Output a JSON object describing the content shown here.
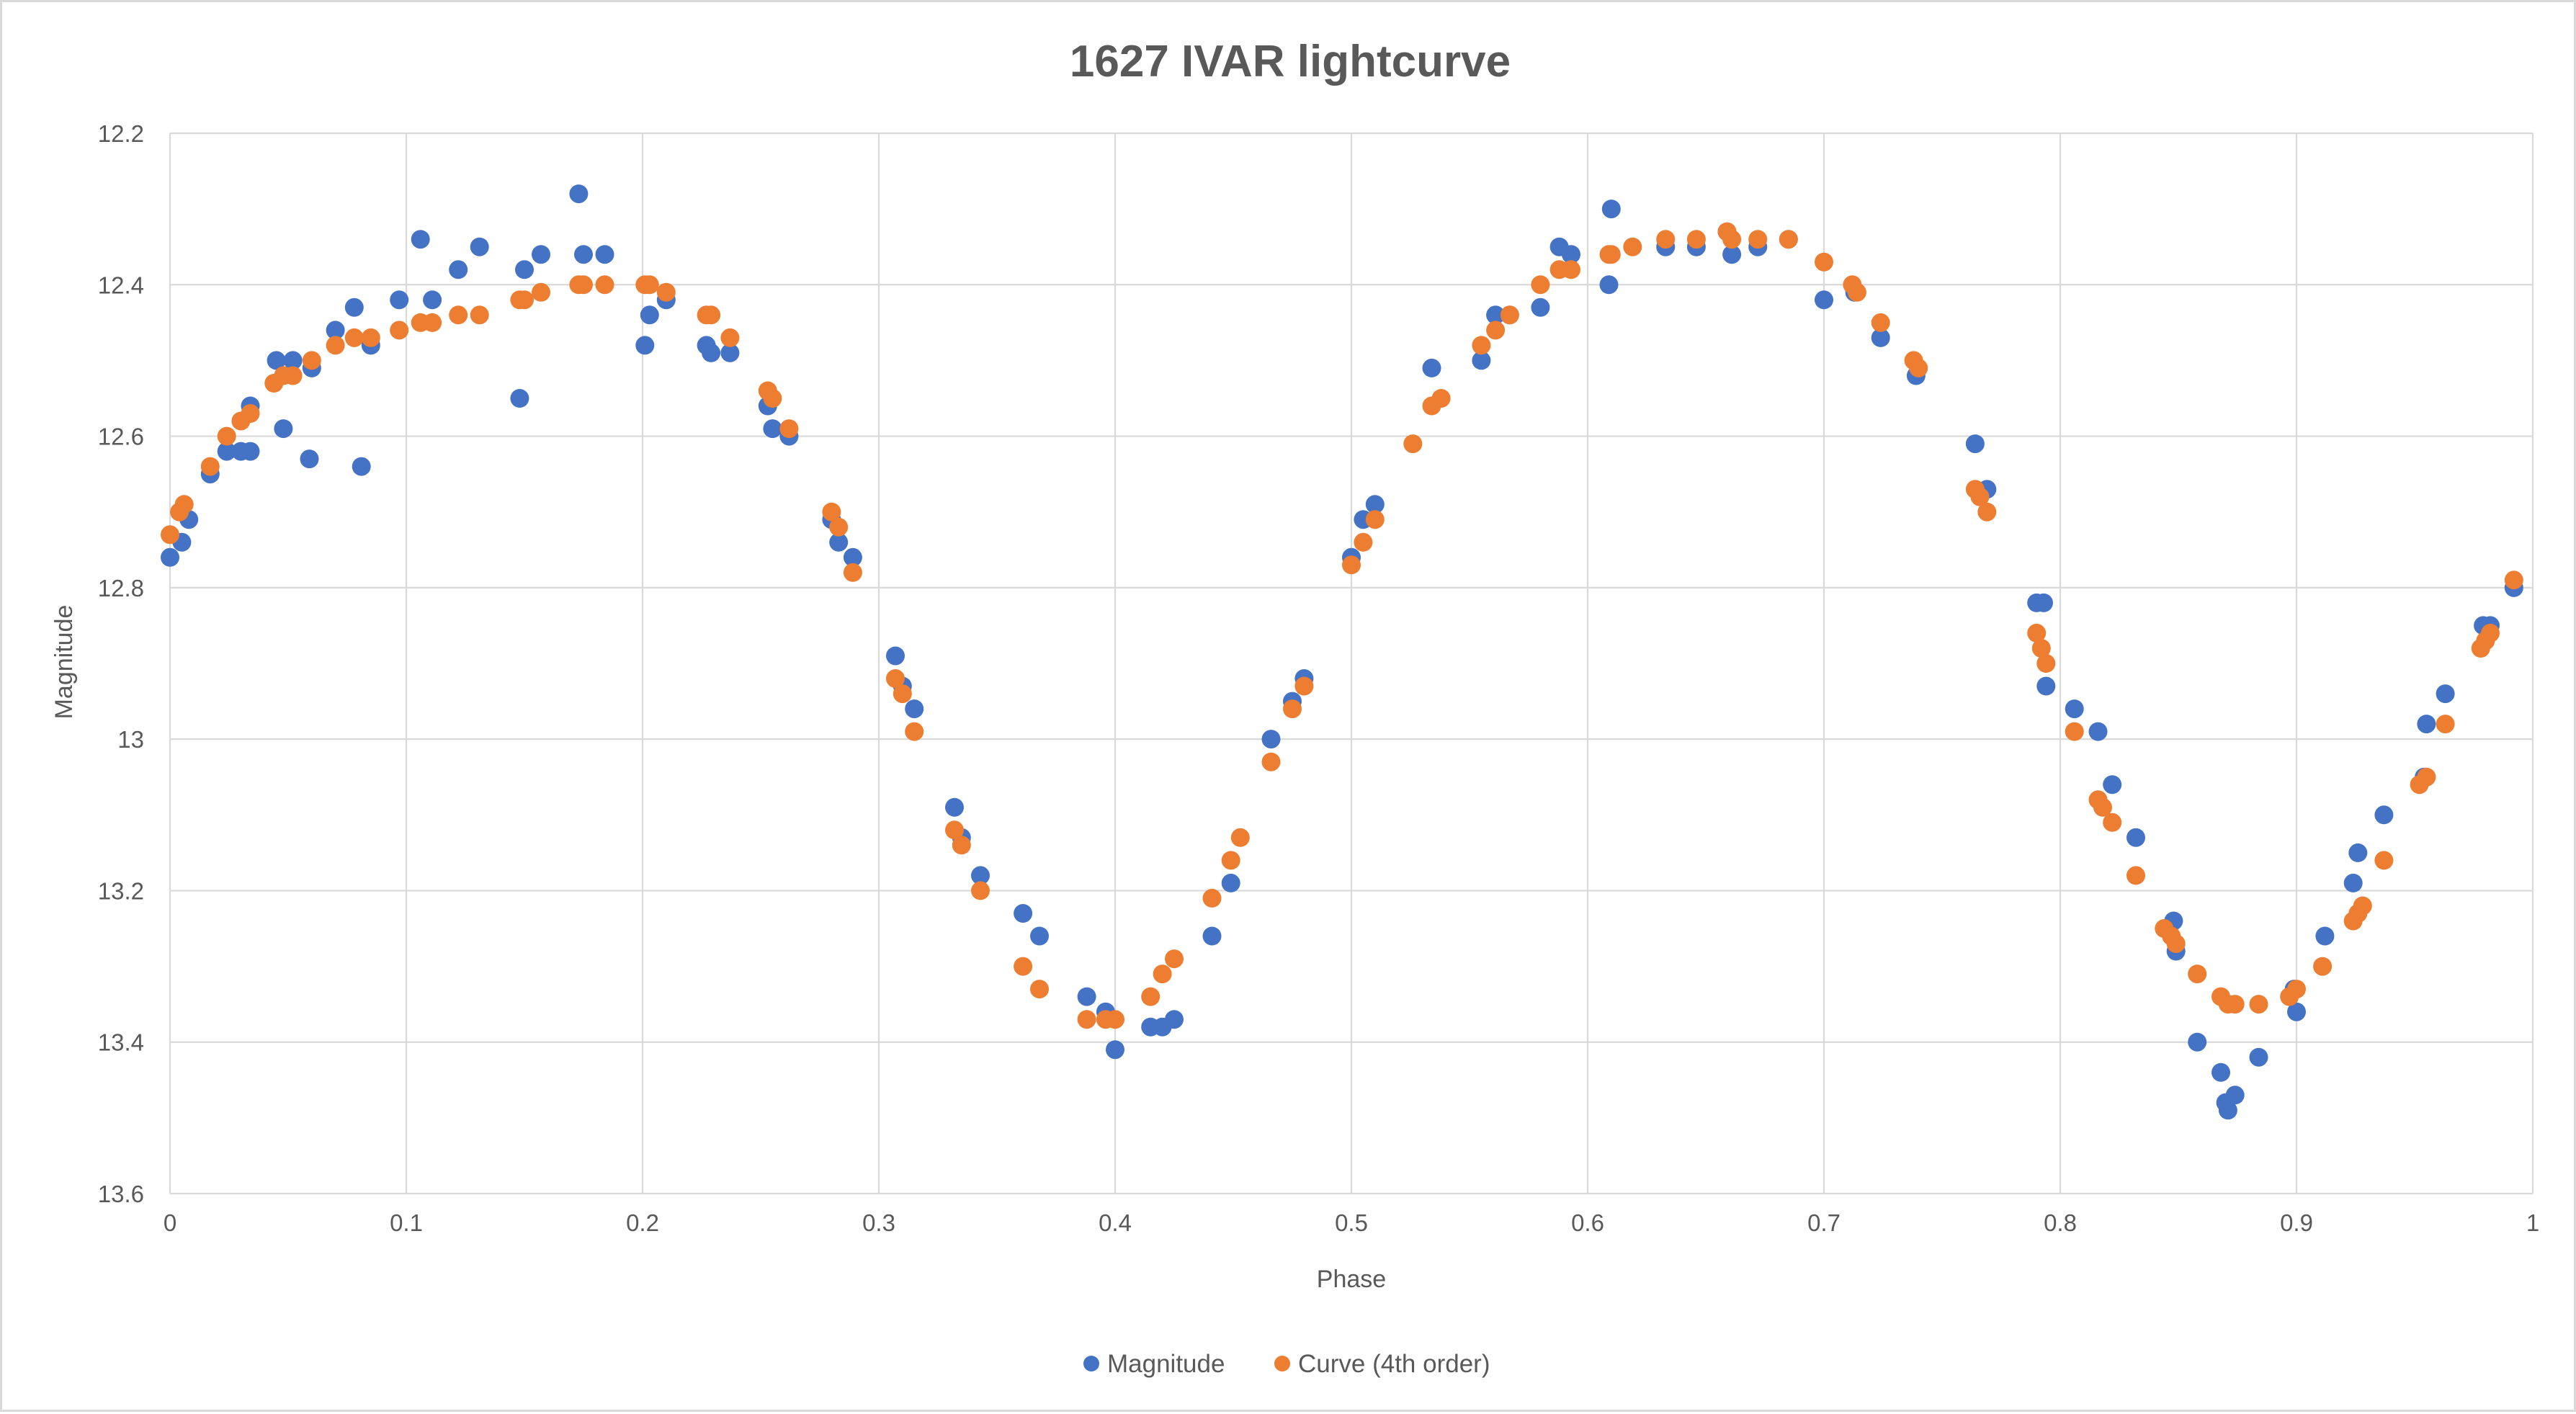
{
  "chart_data": {
    "type": "scatter",
    "title": "1627 IVAR lightcurve",
    "xlabel": "Phase",
    "ylabel": "Magnitude",
    "xlim": [
      0,
      1
    ],
    "ylim": [
      12.2,
      13.6
    ],
    "y_reversed": true,
    "x_ticks": [
      "0",
      "0.1",
      "0.2",
      "0.3",
      "0.4",
      "0.5",
      "0.6",
      "0.7",
      "0.8",
      "0.9",
      "1"
    ],
    "y_ticks": [
      "12.2",
      "12.4",
      "12.6",
      "12.8",
      "13",
      "13.2",
      "13.4",
      "13.6"
    ],
    "grid": true,
    "legend": "bottom",
    "series": [
      {
        "name": "Magnitude",
        "color": "#4472c4",
        "points": [
          [
            0.0,
            12.76
          ],
          [
            0.005,
            12.74
          ],
          [
            0.008,
            12.71
          ],
          [
            0.017,
            12.65
          ],
          [
            0.024,
            12.62
          ],
          [
            0.03,
            12.62
          ],
          [
            0.034,
            12.62
          ],
          [
            0.034,
            12.56
          ],
          [
            0.045,
            12.5
          ],
          [
            0.048,
            12.59
          ],
          [
            0.052,
            12.5
          ],
          [
            0.059,
            12.63
          ],
          [
            0.06,
            12.51
          ],
          [
            0.07,
            12.46
          ],
          [
            0.078,
            12.43
          ],
          [
            0.081,
            12.64
          ],
          [
            0.085,
            12.48
          ],
          [
            0.097,
            12.42
          ],
          [
            0.106,
            12.34
          ],
          [
            0.111,
            12.42
          ],
          [
            0.122,
            12.38
          ],
          [
            0.131,
            12.35
          ],
          [
            0.148,
            12.55
          ],
          [
            0.15,
            12.38
          ],
          [
            0.157,
            12.36
          ],
          [
            0.173,
            12.28
          ],
          [
            0.175,
            12.36
          ],
          [
            0.184,
            12.36
          ],
          [
            0.201,
            12.48
          ],
          [
            0.203,
            12.44
          ],
          [
            0.21,
            12.42
          ],
          [
            0.227,
            12.48
          ],
          [
            0.229,
            12.49
          ],
          [
            0.237,
            12.49
          ],
          [
            0.253,
            12.56
          ],
          [
            0.255,
            12.59
          ],
          [
            0.262,
            12.6
          ],
          [
            0.28,
            12.71
          ],
          [
            0.283,
            12.74
          ],
          [
            0.289,
            12.76
          ],
          [
            0.307,
            12.89
          ],
          [
            0.31,
            12.93
          ],
          [
            0.315,
            12.96
          ],
          [
            0.332,
            13.09
          ],
          [
            0.335,
            13.13
          ],
          [
            0.343,
            13.18
          ],
          [
            0.361,
            13.23
          ],
          [
            0.368,
            13.26
          ],
          [
            0.388,
            13.34
          ],
          [
            0.396,
            13.36
          ],
          [
            0.4,
            13.41
          ],
          [
            0.415,
            13.38
          ],
          [
            0.42,
            13.38
          ],
          [
            0.425,
            13.37
          ],
          [
            0.441,
            13.26
          ],
          [
            0.449,
            13.19
          ],
          [
            0.466,
            13.0
          ],
          [
            0.475,
            12.95
          ],
          [
            0.48,
            12.92
          ],
          [
            0.5,
            12.76
          ],
          [
            0.505,
            12.71
          ],
          [
            0.51,
            12.69
          ],
          [
            0.534,
            12.51
          ],
          [
            0.555,
            12.5
          ],
          [
            0.561,
            12.44
          ],
          [
            0.567,
            12.44
          ],
          [
            0.58,
            12.43
          ],
          [
            0.588,
            12.35
          ],
          [
            0.593,
            12.36
          ],
          [
            0.609,
            12.4
          ],
          [
            0.61,
            12.3
          ],
          [
            0.633,
            12.35
          ],
          [
            0.646,
            12.35
          ],
          [
            0.659,
            12.33
          ],
          [
            0.661,
            12.36
          ],
          [
            0.672,
            12.35
          ],
          [
            0.685,
            12.34
          ],
          [
            0.7,
            12.42
          ],
          [
            0.713,
            12.41
          ],
          [
            0.724,
            12.47
          ],
          [
            0.739,
            12.52
          ],
          [
            0.764,
            12.61
          ],
          [
            0.769,
            12.67
          ],
          [
            0.79,
            12.82
          ],
          [
            0.793,
            12.82
          ],
          [
            0.794,
            12.93
          ],
          [
            0.806,
            12.96
          ],
          [
            0.816,
            12.99
          ],
          [
            0.822,
            13.06
          ],
          [
            0.832,
            13.13
          ],
          [
            0.848,
            13.24
          ],
          [
            0.849,
            13.28
          ],
          [
            0.858,
            13.4
          ],
          [
            0.868,
            13.44
          ],
          [
            0.87,
            13.48
          ],
          [
            0.871,
            13.49
          ],
          [
            0.874,
            13.47
          ],
          [
            0.884,
            13.42
          ],
          [
            0.899,
            13.33
          ],
          [
            0.9,
            13.36
          ],
          [
            0.912,
            13.26
          ],
          [
            0.924,
            13.19
          ],
          [
            0.926,
            13.15
          ],
          [
            0.937,
            13.1
          ],
          [
            0.954,
            13.05
          ],
          [
            0.955,
            12.98
          ],
          [
            0.963,
            12.94
          ],
          [
            0.979,
            12.85
          ],
          [
            0.982,
            12.85
          ],
          [
            0.992,
            12.8
          ]
        ]
      },
      {
        "name": "Curve (4th order)",
        "color": "#ed7d31",
        "points": [
          [
            0.0,
            12.73
          ],
          [
            0.004,
            12.7
          ],
          [
            0.006,
            12.69
          ],
          [
            0.017,
            12.64
          ],
          [
            0.024,
            12.6
          ],
          [
            0.03,
            12.58
          ],
          [
            0.034,
            12.57
          ],
          [
            0.044,
            12.53
          ],
          [
            0.048,
            12.52
          ],
          [
            0.052,
            12.52
          ],
          [
            0.06,
            12.5
          ],
          [
            0.07,
            12.48
          ],
          [
            0.078,
            12.47
          ],
          [
            0.085,
            12.47
          ],
          [
            0.097,
            12.46
          ],
          [
            0.106,
            12.45
          ],
          [
            0.111,
            12.45
          ],
          [
            0.122,
            12.44
          ],
          [
            0.131,
            12.44
          ],
          [
            0.148,
            12.42
          ],
          [
            0.15,
            12.42
          ],
          [
            0.157,
            12.41
          ],
          [
            0.173,
            12.4
          ],
          [
            0.175,
            12.4
          ],
          [
            0.184,
            12.4
          ],
          [
            0.201,
            12.4
          ],
          [
            0.203,
            12.4
          ],
          [
            0.21,
            12.41
          ],
          [
            0.227,
            12.44
          ],
          [
            0.229,
            12.44
          ],
          [
            0.237,
            12.47
          ],
          [
            0.253,
            12.54
          ],
          [
            0.255,
            12.55
          ],
          [
            0.262,
            12.59
          ],
          [
            0.28,
            12.7
          ],
          [
            0.283,
            12.72
          ],
          [
            0.289,
            12.78
          ],
          [
            0.307,
            12.92
          ],
          [
            0.31,
            12.94
          ],
          [
            0.315,
            12.99
          ],
          [
            0.332,
            13.12
          ],
          [
            0.335,
            13.14
          ],
          [
            0.343,
            13.2
          ],
          [
            0.361,
            13.3
          ],
          [
            0.368,
            13.33
          ],
          [
            0.388,
            13.37
          ],
          [
            0.396,
            13.37
          ],
          [
            0.4,
            13.37
          ],
          [
            0.415,
            13.34
          ],
          [
            0.42,
            13.31
          ],
          [
            0.425,
            13.29
          ],
          [
            0.441,
            13.21
          ],
          [
            0.449,
            13.16
          ],
          [
            0.453,
            13.13
          ],
          [
            0.466,
            13.03
          ],
          [
            0.475,
            12.96
          ],
          [
            0.48,
            12.93
          ],
          [
            0.5,
            12.77
          ],
          [
            0.505,
            12.74
          ],
          [
            0.51,
            12.71
          ],
          [
            0.526,
            12.61
          ],
          [
            0.534,
            12.56
          ],
          [
            0.538,
            12.55
          ],
          [
            0.555,
            12.48
          ],
          [
            0.561,
            12.46
          ],
          [
            0.567,
            12.44
          ],
          [
            0.58,
            12.4
          ],
          [
            0.588,
            12.38
          ],
          [
            0.593,
            12.38
          ],
          [
            0.609,
            12.36
          ],
          [
            0.61,
            12.36
          ],
          [
            0.619,
            12.35
          ],
          [
            0.633,
            12.34
          ],
          [
            0.646,
            12.34
          ],
          [
            0.659,
            12.33
          ],
          [
            0.661,
            12.34
          ],
          [
            0.672,
            12.34
          ],
          [
            0.685,
            12.34
          ],
          [
            0.7,
            12.37
          ],
          [
            0.712,
            12.4
          ],
          [
            0.714,
            12.41
          ],
          [
            0.724,
            12.45
          ],
          [
            0.738,
            12.5
          ],
          [
            0.74,
            12.51
          ],
          [
            0.764,
            12.67
          ],
          [
            0.766,
            12.68
          ],
          [
            0.769,
            12.7
          ],
          [
            0.79,
            12.86
          ],
          [
            0.792,
            12.88
          ],
          [
            0.794,
            12.9
          ],
          [
            0.806,
            12.99
          ],
          [
            0.816,
            13.08
          ],
          [
            0.818,
            13.09
          ],
          [
            0.822,
            13.11
          ],
          [
            0.832,
            13.18
          ],
          [
            0.844,
            13.25
          ],
          [
            0.847,
            13.26
          ],
          [
            0.849,
            13.27
          ],
          [
            0.858,
            13.31
          ],
          [
            0.868,
            13.34
          ],
          [
            0.871,
            13.35
          ],
          [
            0.874,
            13.35
          ],
          [
            0.884,
            13.35
          ],
          [
            0.897,
            13.34
          ],
          [
            0.9,
            13.33
          ],
          [
            0.911,
            13.3
          ],
          [
            0.924,
            13.24
          ],
          [
            0.926,
            13.23
          ],
          [
            0.928,
            13.22
          ],
          [
            0.937,
            13.16
          ],
          [
            0.952,
            13.06
          ],
          [
            0.955,
            13.05
          ],
          [
            0.963,
            12.98
          ],
          [
            0.978,
            12.88
          ],
          [
            0.98,
            12.87
          ],
          [
            0.982,
            12.86
          ],
          [
            0.992,
            12.79
          ]
        ]
      }
    ]
  }
}
